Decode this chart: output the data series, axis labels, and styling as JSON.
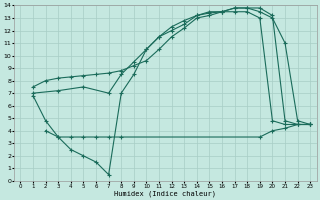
{
  "xlabel": "Humidex (Indice chaleur)",
  "bg_color": "#c5e8e0",
  "grid_color": "#a8cec6",
  "line_color": "#1a6b5a",
  "xlim": [
    -0.5,
    23.5
  ],
  "ylim": [
    0,
    14
  ],
  "xticks": [
    0,
    1,
    2,
    3,
    4,
    5,
    6,
    7,
    8,
    9,
    10,
    11,
    12,
    13,
    14,
    15,
    16,
    17,
    18,
    19,
    20,
    21,
    22,
    23
  ],
  "yticks": [
    0,
    1,
    2,
    3,
    4,
    5,
    6,
    7,
    8,
    9,
    10,
    11,
    12,
    13,
    14
  ],
  "line1_x": [
    1,
    2,
    3,
    4,
    5,
    6,
    7,
    8,
    9,
    10,
    11,
    12,
    13,
    14,
    15,
    16,
    17,
    18,
    19,
    20,
    21,
    22,
    23
  ],
  "line1_y": [
    6.8,
    4.8,
    3.5,
    2.5,
    2.0,
    1.5,
    0.5,
    7.0,
    8.5,
    10.5,
    11.5,
    12.0,
    12.5,
    13.2,
    13.4,
    13.5,
    13.5,
    13.5,
    13.0,
    4.8,
    4.5,
    4.5,
    4.5
  ],
  "line2_x": [
    1,
    2,
    3,
    4,
    5,
    6,
    7,
    8,
    9,
    10,
    11,
    12,
    13,
    14,
    15,
    16,
    17,
    18,
    19,
    20,
    21,
    22,
    23
  ],
  "line2_y": [
    7.5,
    8.0,
    8.2,
    8.3,
    8.4,
    8.5,
    8.6,
    8.8,
    9.2,
    9.6,
    10.5,
    11.5,
    12.2,
    13.0,
    13.2,
    13.5,
    13.8,
    13.8,
    13.5,
    13.0,
    11.0,
    4.8,
    4.5
  ],
  "line3_x": [
    1,
    3,
    5,
    7,
    8,
    9,
    10,
    11,
    12,
    13,
    14,
    15,
    16,
    17,
    18,
    19,
    20,
    21,
    22,
    23
  ],
  "line3_y": [
    7.0,
    7.2,
    7.5,
    7.0,
    8.5,
    9.5,
    10.5,
    11.5,
    12.3,
    12.8,
    13.2,
    13.5,
    13.5,
    13.8,
    13.8,
    13.8,
    13.2,
    4.8,
    4.5,
    4.5
  ],
  "line4_x": [
    2,
    3,
    4,
    5,
    6,
    7,
    8,
    19,
    20,
    21,
    22,
    23
  ],
  "line4_y": [
    4.0,
    3.5,
    3.5,
    3.5,
    3.5,
    3.5,
    3.5,
    3.5,
    4.0,
    4.2,
    4.5,
    4.5
  ]
}
